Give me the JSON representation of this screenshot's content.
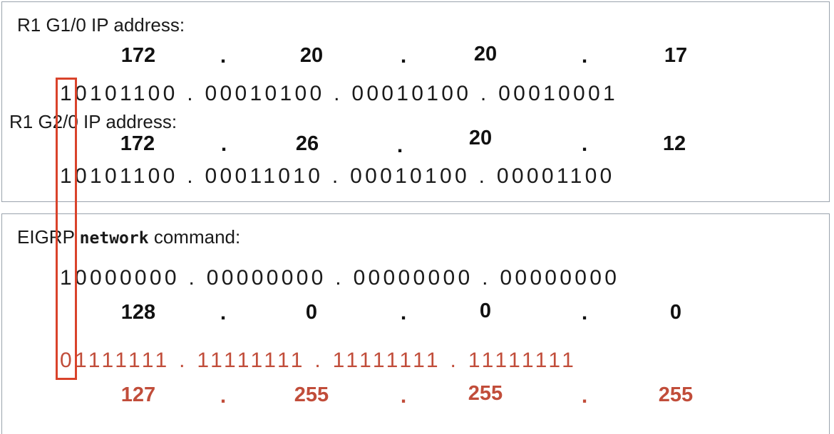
{
  "top_panel": {
    "ip1": {
      "label": "R1 G1/0 IP address:",
      "octets": [
        "172",
        "20",
        "20",
        "17"
      ],
      "binary": "10101100 . 00010100 . 00010100 . 00010001"
    },
    "ip2": {
      "label": "R1 G2/0 IP address:",
      "octets": [
        "172",
        "26",
        "20",
        "12"
      ],
      "binary": "10101100 . 00011010 . 00010100 . 00001100"
    }
  },
  "bottom_panel": {
    "label_prefix": "EIGRP ",
    "label_command": "network",
    "label_suffix": " command:",
    "network": {
      "binary": "10000000 . 00000000 . 00000000 . 00000000",
      "octets": [
        "128",
        "0",
        "0",
        "0"
      ]
    },
    "wildcard": {
      "binary": "01111111 . 11111111 . 11111111 . 11111111",
      "octets": [
        "127",
        "255",
        "255",
        "255"
      ]
    }
  },
  "separator": ".",
  "colors": {
    "highlight": "#d9432b",
    "wildcard_text": "#c14d3a",
    "panel_border": "#9aa3ad"
  }
}
